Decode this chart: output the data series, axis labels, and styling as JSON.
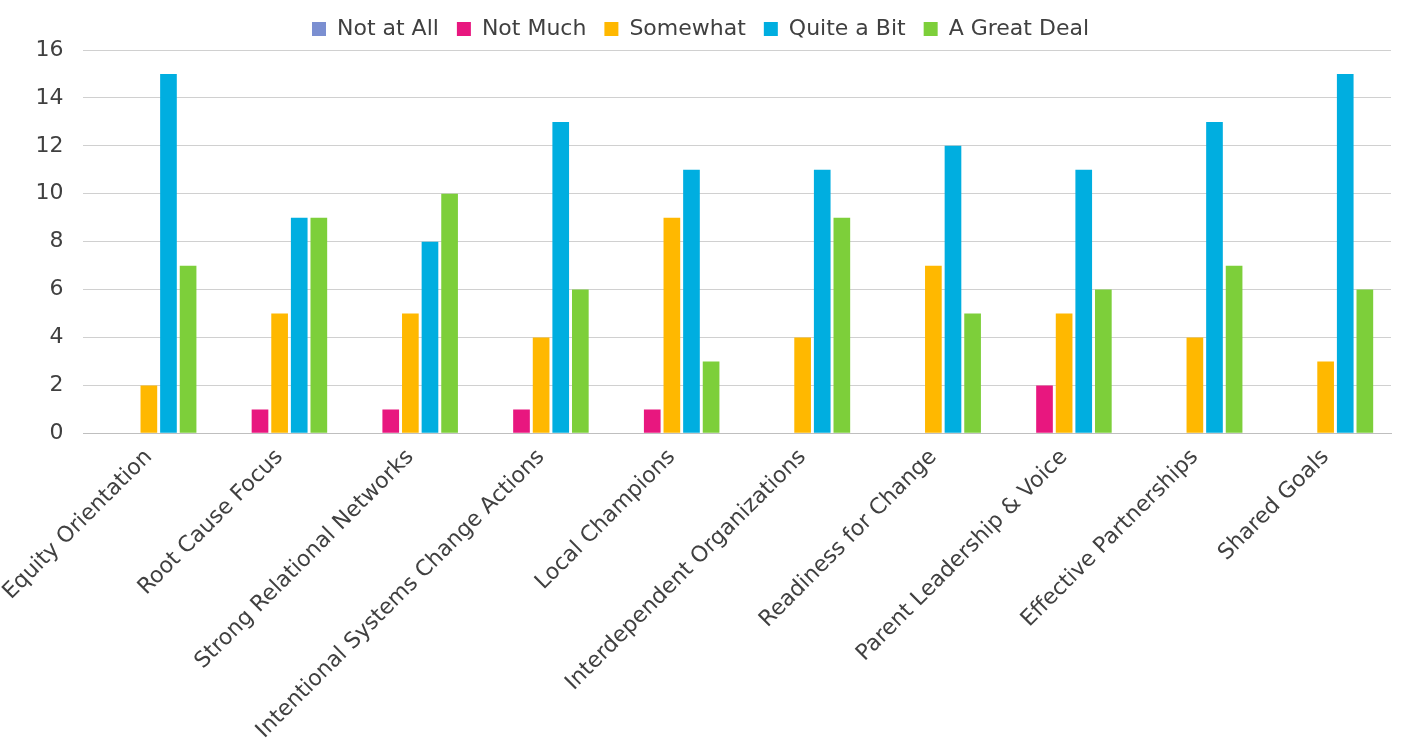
{
  "chart_data": {
    "type": "bar",
    "categories": [
      "Equity Orientation",
      "Root Cause Focus",
      "Strong Relational Networks",
      "Intentional Systems Change Actions",
      "Local Champions",
      "Interdependent Organizations",
      "Readiness for Change",
      "Parent Leadership & Voice",
      "Effective Partnerships",
      "Shared Goals"
    ],
    "series": [
      {
        "name": "Not at All",
        "color": "#7b8fd1",
        "values": [
          0,
          0,
          0,
          0,
          0,
          0,
          0,
          0,
          0,
          0
        ]
      },
      {
        "name": "Not Much",
        "color": "#e8177f",
        "values": [
          0,
          1,
          1,
          1,
          1,
          0,
          0,
          2,
          0,
          0
        ]
      },
      {
        "name": "Somewhat",
        "color": "#ffb800",
        "values": [
          2,
          5,
          5,
          4,
          9,
          4,
          7,
          5,
          4,
          3
        ]
      },
      {
        "name": "Quite a Bit",
        "color": "#00aee0",
        "values": [
          15,
          9,
          8,
          13,
          11,
          11,
          12,
          11,
          13,
          15
        ]
      },
      {
        "name": "A Great Deal",
        "color": "#7dcf3a",
        "values": [
          7,
          9,
          10,
          6,
          3,
          9,
          5,
          6,
          7,
          6
        ]
      }
    ],
    "ylim": [
      0,
      16
    ],
    "yticks": [
      0,
      2,
      4,
      6,
      8,
      10,
      12,
      14,
      16
    ],
    "grid": "y",
    "legend": "top"
  }
}
